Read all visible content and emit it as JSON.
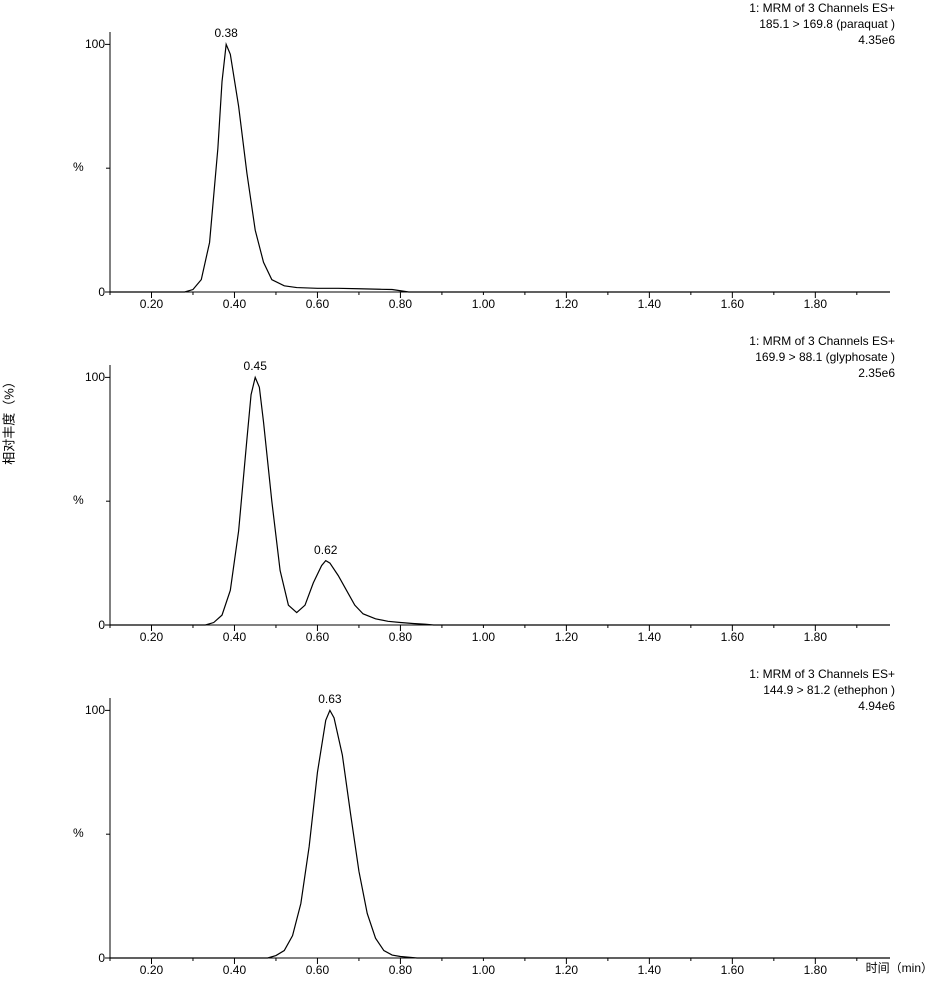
{
  "global_y_label": "相对丰度（%）",
  "x_axis_label": "时间（min）",
  "line_color": "#000000",
  "line_width": 1.2,
  "background_color": "#ffffff",
  "xlim": [
    0.1,
    1.98
  ],
  "ylim": [
    0,
    105
  ],
  "x_ticks": [
    "0.20",
    "0.40",
    "0.60",
    "0.80",
    "1.00",
    "1.20",
    "1.40",
    "1.60",
    "1.80"
  ],
  "y_ticks": [
    "0",
    "100"
  ],
  "y_mid_label": "%",
  "panels": [
    {
      "header_line1": "1: MRM of 3 Channels ES+",
      "header_line2": "185.1 > 169.8 (paraquat  )",
      "header_line3": "4.35e6",
      "peak_labels": [
        {
          "x": 0.38,
          "text": "0.38"
        }
      ],
      "curve": [
        [
          0.1,
          0
        ],
        [
          0.28,
          0
        ],
        [
          0.3,
          1
        ],
        [
          0.32,
          5
        ],
        [
          0.34,
          20
        ],
        [
          0.36,
          58
        ],
        [
          0.37,
          85
        ],
        [
          0.38,
          100
        ],
        [
          0.39,
          96
        ],
        [
          0.41,
          75
        ],
        [
          0.43,
          48
        ],
        [
          0.45,
          25
        ],
        [
          0.47,
          12
        ],
        [
          0.49,
          5
        ],
        [
          0.52,
          2.5
        ],
        [
          0.55,
          1.8
        ],
        [
          0.6,
          1.5
        ],
        [
          0.65,
          1.5
        ],
        [
          0.7,
          1.3
        ],
        [
          0.75,
          1.1
        ],
        [
          0.78,
          1
        ],
        [
          0.8,
          0.5
        ],
        [
          0.82,
          0
        ],
        [
          1.98,
          0
        ]
      ]
    },
    {
      "header_line1": "1: MRM of 3 Channels ES+",
      "header_line2": "169.9 > 88.1 (glyphosate )",
      "header_line3": "2.35e6",
      "peak_labels": [
        {
          "x": 0.45,
          "text": "0.45"
        },
        {
          "x": 0.62,
          "text": "0.62"
        }
      ],
      "curve": [
        [
          0.1,
          0
        ],
        [
          0.33,
          0
        ],
        [
          0.35,
          1
        ],
        [
          0.37,
          4
        ],
        [
          0.39,
          14
        ],
        [
          0.41,
          38
        ],
        [
          0.43,
          75
        ],
        [
          0.44,
          93
        ],
        [
          0.45,
          100
        ],
        [
          0.46,
          96
        ],
        [
          0.47,
          82
        ],
        [
          0.49,
          50
        ],
        [
          0.51,
          22
        ],
        [
          0.53,
          8
        ],
        [
          0.55,
          5
        ],
        [
          0.57,
          8
        ],
        [
          0.59,
          17
        ],
        [
          0.61,
          24
        ],
        [
          0.62,
          26
        ],
        [
          0.63,
          25
        ],
        [
          0.65,
          20
        ],
        [
          0.67,
          14
        ],
        [
          0.69,
          8
        ],
        [
          0.71,
          4.5
        ],
        [
          0.74,
          2.5
        ],
        [
          0.77,
          1.5
        ],
        [
          0.8,
          1
        ],
        [
          0.83,
          0.6
        ],
        [
          0.86,
          0.3
        ],
        [
          0.88,
          0
        ],
        [
          1.98,
          0
        ]
      ]
    },
    {
      "header_line1": "1: MRM of 3 Channels ES+",
      "header_line2": "144.9 > 81.2 (ethephon )",
      "header_line3": "4.94e6",
      "peak_labels": [
        {
          "x": 0.63,
          "text": "0.63"
        }
      ],
      "curve": [
        [
          0.1,
          0
        ],
        [
          0.48,
          0
        ],
        [
          0.5,
          1
        ],
        [
          0.52,
          3
        ],
        [
          0.54,
          9
        ],
        [
          0.56,
          22
        ],
        [
          0.58,
          45
        ],
        [
          0.6,
          75
        ],
        [
          0.62,
          96
        ],
        [
          0.63,
          100
        ],
        [
          0.64,
          97
        ],
        [
          0.66,
          82
        ],
        [
          0.68,
          58
        ],
        [
          0.7,
          35
        ],
        [
          0.72,
          18
        ],
        [
          0.74,
          8
        ],
        [
          0.76,
          3
        ],
        [
          0.78,
          1.2
        ],
        [
          0.8,
          0.6
        ],
        [
          0.82,
          0.3
        ],
        [
          0.84,
          0
        ],
        [
          1.98,
          0
        ]
      ]
    }
  ]
}
